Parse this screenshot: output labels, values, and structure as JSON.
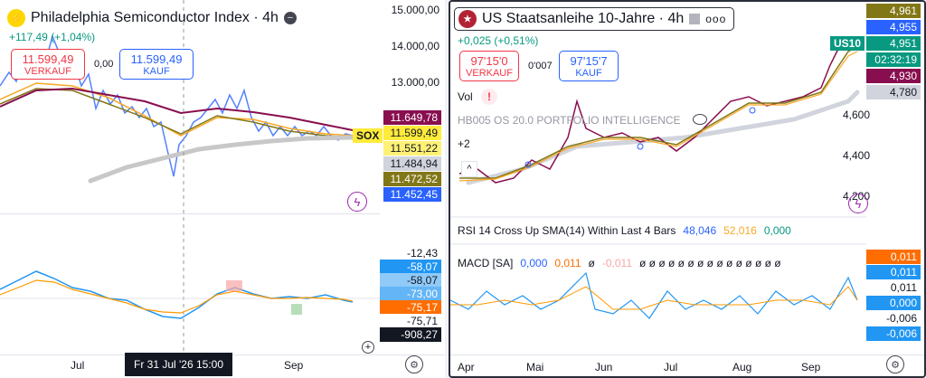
{
  "left": {
    "title": "Philadelphia Semiconductor Index · 4h",
    "change": "+117,49 (+1,04%)",
    "sell": {
      "price": "11.599,49",
      "label": "VERKAUF"
    },
    "spread": "0,00",
    "buy": {
      "price": "11.599,49",
      "label": "KAUF"
    },
    "price_axis": [
      "15.000,00",
      "14.000,00",
      "13.000,00"
    ],
    "symbol_tag": "SOX",
    "price_tags": [
      {
        "text": "11.649,78",
        "bg": "#880e4f",
        "fg": "#ffffff"
      },
      {
        "text": "11.599,49",
        "bg": "#ffeb3b",
        "fg": "#131722"
      },
      {
        "text": "11.551,22",
        "bg": "#fff176",
        "fg": "#131722"
      },
      {
        "text": "11.484,94",
        "bg": "#d1d4dc",
        "fg": "#131722"
      },
      {
        "text": "11.472,52",
        "bg": "#827717",
        "fg": "#ffffff"
      },
      {
        "text": "11.452,45",
        "bg": "#2962ff",
        "fg": "#ffffff"
      }
    ],
    "osc_axis": [
      {
        "text": "-12,43",
        "bg": "#ffffff",
        "fg": "#131722"
      },
      {
        "text": "-58,07",
        "bg": "#2196f3",
        "fg": "#ffffff"
      },
      {
        "text": "-58,07",
        "bg": "#90caf9",
        "fg": "#131722"
      },
      {
        "text": "-73,00",
        "bg": "#64b5f6",
        "fg": "#ffffff"
      },
      {
        "text": "-75,17",
        "bg": "#ff6d00",
        "fg": "#ffffff"
      },
      {
        "text": "-75,71",
        "bg": "#ffffff",
        "fg": "#131722"
      },
      {
        "text": "-908,27",
        "bg": "#131722",
        "fg": "#ffffff"
      }
    ],
    "time_labels": [
      "Jul",
      "Sep"
    ],
    "crosshair_time": "Fr 31 Jul '26   15:00"
  },
  "right": {
    "title": "US Staatsanleihe 10-Jahre · 4h",
    "change": "+0,025 (+0,51%)",
    "sell": {
      "price": "97'15'0",
      "label": "VERKAUF"
    },
    "spread": "0'007",
    "buy": {
      "price": "97'15'7",
      "label": "KAUF"
    },
    "vol_label": "Vol",
    "watermark": "HB005 OS 20.0 PORTFOLIO INTELLIGENCE",
    "plus2": "+2",
    "price_axis": [
      "4,600",
      "4,400",
      "4,200"
    ],
    "symbol_tag": "US10",
    "price_tags": [
      {
        "text": "4,961",
        "bg": "#827717",
        "fg": "#ffffff"
      },
      {
        "text": "4,955",
        "bg": "#2962ff",
        "fg": "#ffffff"
      },
      {
        "text": "4,951",
        "bg": "#089981",
        "fg": "#ffffff"
      },
      {
        "text": "02:32:19",
        "bg": "#089981",
        "fg": "#ffffff"
      },
      {
        "text": "4,930",
        "bg": "#880e4f",
        "fg": "#ffffff"
      },
      {
        "text": "4,780",
        "bg": "#d1d4dc",
        "fg": "#131722"
      }
    ],
    "rsi": {
      "label": "RSI 14 Cross Up SMA(14) Within Last 4 Bars",
      "v1": "48,046",
      "v2": "52,016",
      "v3": "0,000"
    },
    "macd": {
      "label": "MACD [SA]",
      "v1": "0,000",
      "v2": "0,011",
      "v3": "ø",
      "v4": "-0,011",
      "tail": "ø ø ø ø ø ø ø ø ø ø ø ø ø ø ø"
    },
    "osc_axis": [
      {
        "text": "0,011",
        "bg": "#ff6d00",
        "fg": "#ffffff"
      },
      {
        "text": "0,011",
        "bg": "#2196f3",
        "fg": "#ffffff"
      },
      {
        "text": "0,011",
        "bg": "#ffffff",
        "fg": "#131722"
      },
      {
        "text": "0,000",
        "bg": "#2196f3",
        "fg": "#ffffff"
      },
      {
        "text": "-0,006",
        "bg": "#ffffff",
        "fg": "#131722"
      },
      {
        "text": "-0,006",
        "bg": "#2196f3",
        "fg": "#ffffff"
      }
    ],
    "time_labels": [
      "Apr",
      "Mai",
      "Jun",
      "Jul",
      "Aug",
      "Sep"
    ]
  }
}
